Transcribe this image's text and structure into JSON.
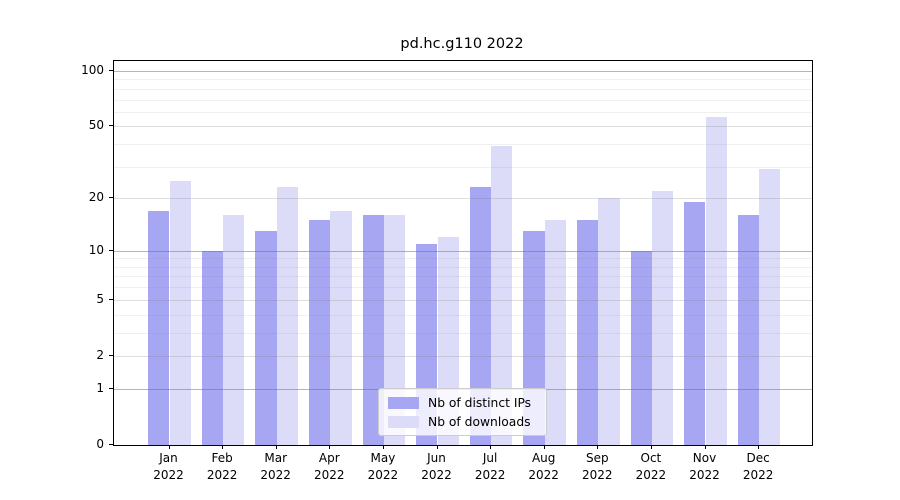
{
  "title": "pd.hc.g110 2022",
  "colors": {
    "ips": "#a6a6f2",
    "downloads": "#dcdcf9",
    "spine": "#000000",
    "legend_border": "#cccccc"
  },
  "legend": {
    "items": [
      {
        "label": "Nb of distinct IPs",
        "color_key": "ips"
      },
      {
        "label": "Nb of downloads",
        "color_key": "downloads"
      }
    ],
    "position": "lower center"
  },
  "chart_data": {
    "type": "bar",
    "title": "pd.hc.g110 2022",
    "xlabel": "",
    "ylabel": "",
    "scale": "log1p",
    "categories": [
      "Jan",
      "Feb",
      "Mar",
      "Apr",
      "May",
      "Jun",
      "Jul",
      "Aug",
      "Sep",
      "Oct",
      "Nov",
      "Dec"
    ],
    "year": "2022",
    "series": [
      {
        "name": "Nb of distinct IPs",
        "color_key": "ips",
        "values": [
          17,
          10,
          13,
          15,
          16,
          11,
          23,
          13,
          15,
          10,
          19,
          16
        ]
      },
      {
        "name": "Nb of downloads",
        "color_key": "downloads",
        "values": [
          25,
          16,
          23,
          17,
          16,
          12,
          39,
          15,
          20,
          22,
          56,
          29
        ]
      }
    ],
    "y_ticks": [
      0,
      1,
      2,
      5,
      10,
      20,
      50,
      100
    ],
    "y_decade_ticks": [
      1,
      10,
      100
    ],
    "y_minor_ticks": [
      3,
      4,
      6,
      7,
      8,
      9,
      30,
      40,
      60,
      70,
      80,
      90
    ],
    "y_log1p_max": 2.0578,
    "ylim": [
      0,
      113
    ],
    "grid": "both",
    "legend_position": "lower center"
  }
}
